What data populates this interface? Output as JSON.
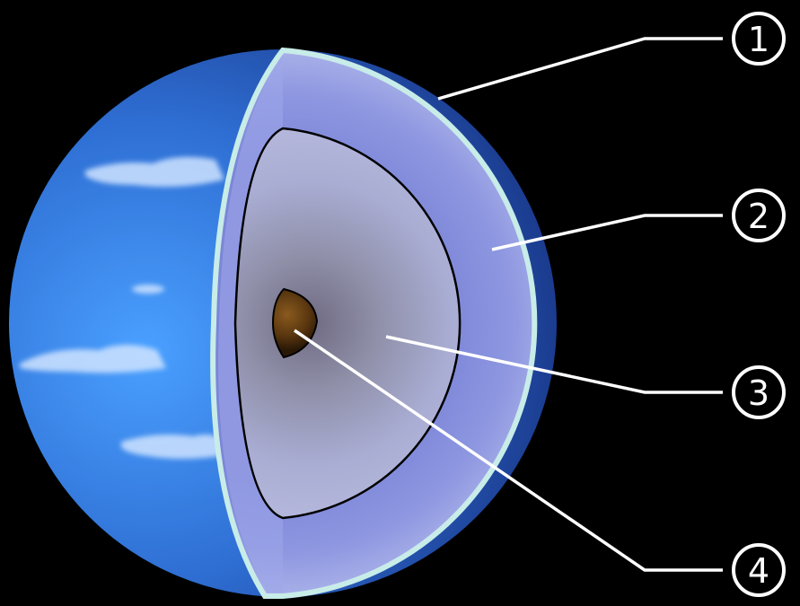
{
  "colors": {
    "background": "#000000",
    "atmosphere_fill": "#8d95dd",
    "atmosphere_rim": "#c8ece8",
    "mantle_fill": "#a9add3",
    "core_fill": "#4a2d0c",
    "ocean_blue": "#2f6fd4",
    "callout_line": "#ffffff"
  },
  "icons": [
    "cloud-icon",
    "planet-core-icon"
  ],
  "layers": [
    {
      "number": "1"
    },
    {
      "number": "2"
    },
    {
      "number": "3"
    },
    {
      "number": "4"
    }
  ]
}
